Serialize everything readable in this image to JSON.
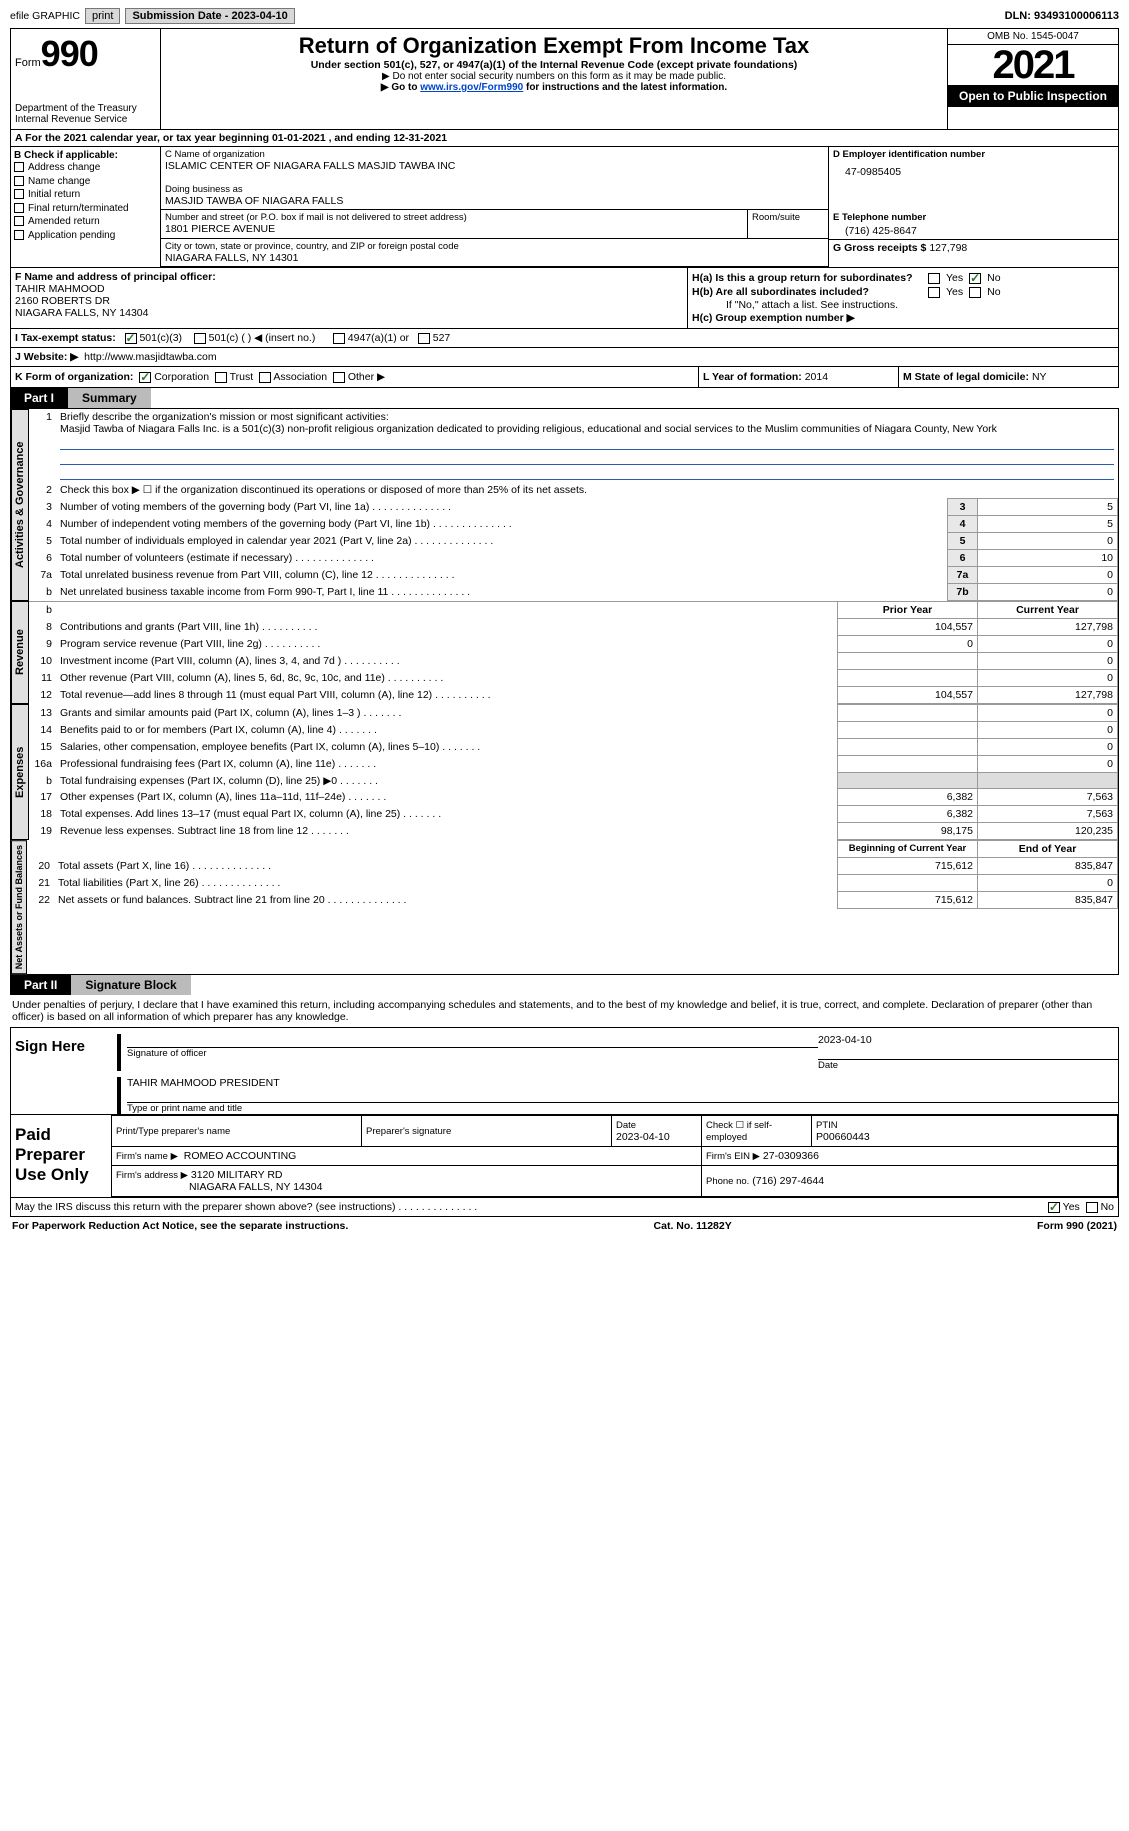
{
  "topbar": {
    "efile_label": "efile GRAPHIC",
    "print_btn": "print",
    "submission_label": "Submission Date - 2023-04-10",
    "dln": "DLN: 93493100006113"
  },
  "header": {
    "form_label": "Form",
    "form_number": "990",
    "dept": "Department of the Treasury\nInternal Revenue Service",
    "title": "Return of Organization Exempt From Income Tax",
    "subtitle": "Under section 501(c), 527, or 4947(a)(1) of the Internal Revenue Code (except private foundations)",
    "note1": "▶ Do not enter social security numbers on this form as it may be made public.",
    "note2_pre": "▶ Go to ",
    "note2_link": "www.irs.gov/Form990",
    "note2_post": " for instructions and the latest information.",
    "omb": "OMB No. 1545-0047",
    "year": "2021",
    "open": "Open to Public Inspection"
  },
  "row_a": "A For the 2021 calendar year, or tax year beginning 01-01-2021   , and ending 12-31-2021",
  "col_b": {
    "title": "B Check if applicable:",
    "c1": "Address change",
    "c2": "Name change",
    "c3": "Initial return",
    "c4": "Final return/terminated",
    "c5": "Amended return",
    "c6": "Application pending"
  },
  "c_block": {
    "name_label": "C Name of organization",
    "name": "ISLAMIC CENTER OF NIAGARA FALLS MASJID TAWBA INC",
    "dba_label": "Doing business as",
    "dba": "MASJID TAWBA OF NIAGARA FALLS",
    "street_label": "Number and street (or P.O. box if mail is not delivered to street address)",
    "street": "1801 PIERCE AVENUE",
    "room_label": "Room/suite",
    "city_label": "City or town, state or province, country, and ZIP or foreign postal code",
    "city": "NIAGARA FALLS, NY  14301"
  },
  "d_e_g": {
    "d_label": "D Employer identification number",
    "d_val": "47-0985405",
    "e_label": "E Telephone number",
    "e_val": "(716) 425-8647",
    "g_label": "G Gross receipts $",
    "g_val": "127,798"
  },
  "f_h": {
    "f_label": "F Name and address of principal officer:",
    "f_name": "TAHIR MAHMOOD",
    "f_addr1": "2160 ROBERTS DR",
    "f_addr2": "NIAGARA FALLS, NY  14304",
    "ha_label": "H(a)  Is this a group return for subordinates?",
    "hb_label": "H(b)  Are all subordinates included?",
    "hb_note": "If \"No,\" attach a list. See instructions.",
    "hc_label": "H(c)  Group exemption number ▶",
    "yes": "Yes",
    "no": "No"
  },
  "i_row": {
    "label": "I   Tax-exempt status:",
    "c501c3": "501(c)(3)",
    "c501c": "501(c) (  ) ◀ (insert no.)",
    "c4947": "4947(a)(1) or",
    "c527": "527"
  },
  "j_row": {
    "label": "J   Website: ▶",
    "url": "http://www.masjidtawba.com"
  },
  "k_row": {
    "label": "K Form of organization:",
    "corp": "Corporation",
    "trust": "Trust",
    "assoc": "Association",
    "other": "Other ▶"
  },
  "l_row": {
    "label": "L Year of formation:",
    "val": "2014"
  },
  "m_row": {
    "label": "M State of legal domicile:",
    "val": "NY"
  },
  "part1": {
    "bar_label": "Part I",
    "bar_title": "Summary",
    "l1_label": "Briefly describe the organization's mission or most significant activities:",
    "l1_text": "Masjid Tawba of Niagara Falls Inc. is a 501(c)(3) non-profit religious organization dedicated to providing religious, educational and social services to the Muslim communities of Niagara County, New York",
    "l2": "Check this box ▶ ☐  if the organization discontinued its operations or disposed of more than 25% of its net assets.",
    "rows": [
      {
        "n": "3",
        "t": "Number of voting members of the governing body (Part VI, line 1a)",
        "ln": "3",
        "v": "5"
      },
      {
        "n": "4",
        "t": "Number of independent voting members of the governing body (Part VI, line 1b)",
        "ln": "4",
        "v": "5"
      },
      {
        "n": "5",
        "t": "Total number of individuals employed in calendar year 2021 (Part V, line 2a)",
        "ln": "5",
        "v": "0"
      },
      {
        "n": "6",
        "t": "Total number of volunteers (estimate if necessary)",
        "ln": "6",
        "v": "10"
      },
      {
        "n": "7a",
        "t": "Total unrelated business revenue from Part VIII, column (C), line 12",
        "ln": "7a",
        "v": "0"
      },
      {
        "n": "b",
        "t": "Net unrelated business taxable income from Form 990-T, Part I, line 11",
        "ln": "7b",
        "v": "0"
      }
    ],
    "prior_year": "Prior Year",
    "current_year": "Current Year",
    "rev_rows": [
      {
        "n": "8",
        "t": "Contributions and grants (Part VIII, line 1h)",
        "p": "104,557",
        "c": "127,798"
      },
      {
        "n": "9",
        "t": "Program service revenue (Part VIII, line 2g)",
        "p": "0",
        "c": "0"
      },
      {
        "n": "10",
        "t": "Investment income (Part VIII, column (A), lines 3, 4, and 7d )",
        "p": "",
        "c": "0"
      },
      {
        "n": "11",
        "t": "Other revenue (Part VIII, column (A), lines 5, 6d, 8c, 9c, 10c, and 11e)",
        "p": "",
        "c": "0"
      },
      {
        "n": "12",
        "t": "Total revenue—add lines 8 through 11 (must equal Part VIII, column (A), line 12)",
        "p": "104,557",
        "c": "127,798"
      }
    ],
    "exp_rows": [
      {
        "n": "13",
        "t": "Grants and similar amounts paid (Part IX, column (A), lines 1–3 )",
        "p": "",
        "c": "0"
      },
      {
        "n": "14",
        "t": "Benefits paid to or for members (Part IX, column (A), line 4)",
        "p": "",
        "c": "0"
      },
      {
        "n": "15",
        "t": "Salaries, other compensation, employee benefits (Part IX, column (A), lines 5–10)",
        "p": "",
        "c": "0"
      },
      {
        "n": "16a",
        "t": "Professional fundraising fees (Part IX, column (A), line 11e)",
        "p": "",
        "c": "0"
      },
      {
        "n": "b",
        "t": "Total fundraising expenses (Part IX, column (D), line 25) ▶0",
        "p": "GRAY",
        "c": "GRAY"
      },
      {
        "n": "17",
        "t": "Other expenses (Part IX, column (A), lines 11a–11d, 11f–24e)",
        "p": "6,382",
        "c": "7,563"
      },
      {
        "n": "18",
        "t": "Total expenses. Add lines 13–17 (must equal Part IX, column (A), line 25)",
        "p": "6,382",
        "c": "7,563"
      },
      {
        "n": "19",
        "t": "Revenue less expenses. Subtract line 18 from line 12",
        "p": "98,175",
        "c": "120,235"
      }
    ],
    "boy": "Beginning of Current Year",
    "eoy": "End of Year",
    "na_rows": [
      {
        "n": "20",
        "t": "Total assets (Part X, line 16)",
        "p": "715,612",
        "c": "835,847"
      },
      {
        "n": "21",
        "t": "Total liabilities (Part X, line 26)",
        "p": "",
        "c": "0"
      },
      {
        "n": "22",
        "t": "Net assets or fund balances. Subtract line 21 from line 20",
        "p": "715,612",
        "c": "835,847"
      }
    ],
    "side_ag": "Activities & Governance",
    "side_rev": "Revenue",
    "side_exp": "Expenses",
    "side_na": "Net Assets or Fund Balances"
  },
  "part2": {
    "bar_label": "Part II",
    "bar_title": "Signature Block",
    "declaration": "Under penalties of perjury, I declare that I have examined this return, including accompanying schedules and statements, and to the best of my knowledge and belief, it is true, correct, and complete. Declaration of preparer (other than officer) is based on all information of which preparer has any knowledge.",
    "sign_here": "Sign Here",
    "sig_officer": "Signature of officer",
    "sig_date": "2023-04-10",
    "date_label": "Date",
    "officer_name": "TAHIR MAHMOOD  PRESIDENT",
    "type_name_label": "Type or print name and title",
    "paid_preparer": "Paid Preparer Use Only",
    "pp_name_label": "Print/Type preparer's name",
    "pp_sig_label": "Preparer's signature",
    "pp_date_label": "Date",
    "pp_date": "2023-04-10",
    "pp_check_label": "Check ☐ if self-employed",
    "ptin_label": "PTIN",
    "ptin": "P00660443",
    "firm_name_label": "Firm's name      ▶",
    "firm_name": "ROMEO ACCOUNTING",
    "firm_ein_label": "Firm's EIN ▶",
    "firm_ein": "27-0309366",
    "firm_addr_label": "Firm's address ▶",
    "firm_addr1": "3120 MILITARY RD",
    "firm_addr2": "NIAGARA FALLS, NY  14304",
    "phone_label": "Phone no.",
    "phone": "(716) 297-4644",
    "discuss": "May the IRS discuss this return with the preparer shown above? (see instructions)"
  },
  "footer": {
    "pra": "For Paperwork Reduction Act Notice, see the separate instructions.",
    "cat": "Cat. No. 11282Y",
    "form": "Form 990 (2021)"
  }
}
